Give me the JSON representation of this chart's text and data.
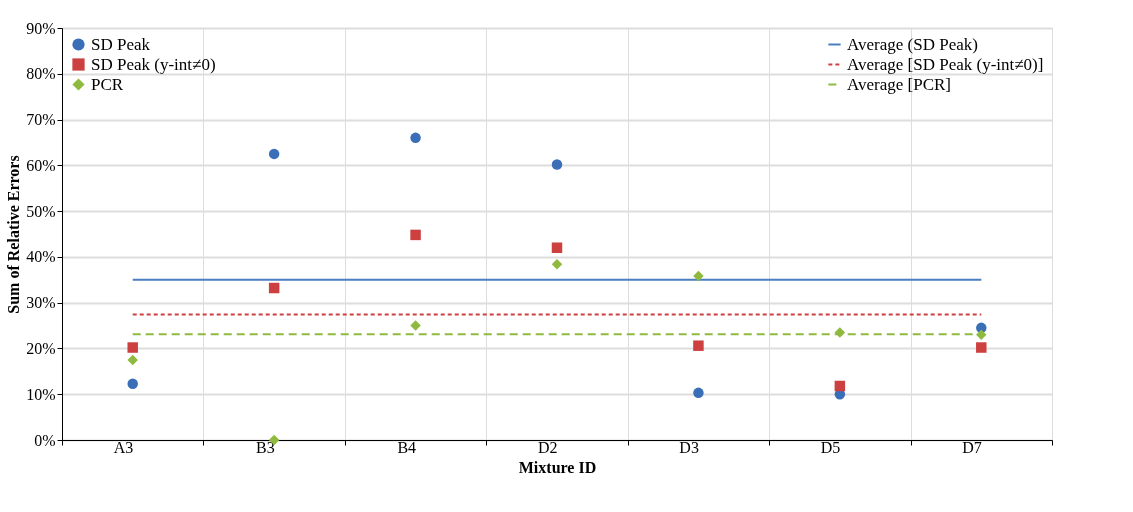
{
  "chart_data": {
    "type": "scatter",
    "xlabel": "Mixture ID",
    "ylabel": "Sum of Relative Errors",
    "categories": [
      "A3",
      "B3",
      "B4",
      "D2",
      "D3",
      "D5",
      "D7"
    ],
    "series": [
      {
        "name": "SD Peak",
        "color": "#3a6fb7",
        "marker": "circle",
        "values": [
          12.3,
          62.5,
          66,
          60.2,
          10.3,
          10,
          24.5
        ]
      },
      {
        "name": "SD Peak (y-int≠0)",
        "color": "#cc4040",
        "marker": "square",
        "values": [
          20.2,
          33.2,
          44.8,
          42,
          20.6,
          11.8,
          20.2
        ]
      },
      {
        "name": "PCR",
        "color": "#8fba3f",
        "marker": "diamond",
        "values": [
          17.5,
          0,
          25,
          38.4,
          35.8,
          23.5,
          23
        ]
      },
      {
        "name": "Average (SD Peak)",
        "type": "line",
        "line_style": "solid",
        "color": "#4a7ebf",
        "values": [
          35,
          35,
          35,
          35,
          35,
          35,
          35
        ]
      },
      {
        "name": "Average [SD Peak (y-int≠0)]",
        "type": "line",
        "line_style": "dotted",
        "color": "#cc4040",
        "values": [
          27.4,
          27.4,
          27.4,
          27.4,
          27.4,
          27.4,
          27.4
        ]
      },
      {
        "name": "Average [PCR]",
        "type": "line",
        "line_style": "dashed",
        "color": "#8fba3f",
        "values": [
          23.1,
          23.1,
          23.1,
          23.1,
          23.1,
          23.1,
          23.1
        ]
      }
    ],
    "ylim": [
      0,
      90
    ],
    "yticks": [
      {
        "value": 0,
        "label": "0%"
      },
      {
        "value": 10,
        "label": "10%"
      },
      {
        "value": 20,
        "label": "20%"
      },
      {
        "value": 30,
        "label": "30%"
      },
      {
        "value": 40,
        "label": "40%"
      },
      {
        "value": 50,
        "label": "50%"
      },
      {
        "value": 60,
        "label": "60%"
      },
      {
        "value": 70,
        "label": "70%"
      },
      {
        "value": 80,
        "label": "80%"
      },
      {
        "value": 90,
        "label": "90%"
      }
    ],
    "grid": true,
    "legend": "top"
  }
}
